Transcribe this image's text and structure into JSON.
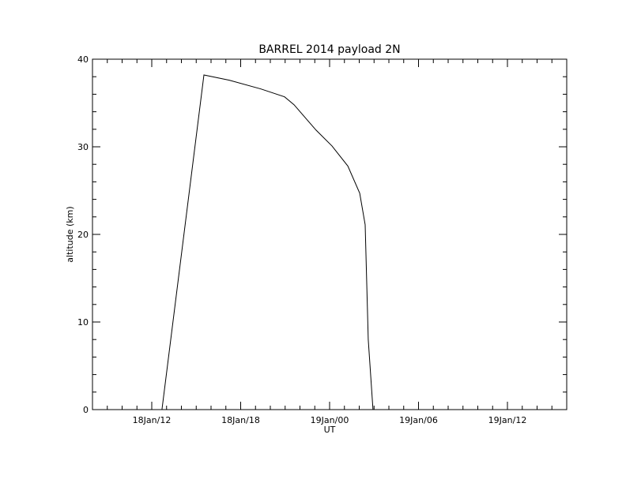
{
  "chart_data": {
    "type": "line",
    "title": "BARREL 2014 payload 2N",
    "x_label": "UT",
    "y_label": "altitude (km)",
    "series": [
      {
        "name": "altitude",
        "color": "#000000",
        "x": [
          12.69,
          15.52,
          17.23,
          19.36,
          20.96,
          21.6,
          23.09,
          24.16,
          25.23,
          26.03,
          26.4,
          26.61,
          26.93
        ],
        "values": [
          0,
          38.2,
          37.6,
          36.6,
          35.7,
          34.8,
          31.9,
          30.1,
          27.8,
          24.7,
          21.1,
          8.0,
          0
        ]
      }
    ],
    "xlim": [
      8,
      40
    ],
    "xticks": [
      {
        "value": 12,
        "label": "18Jan/12"
      },
      {
        "value": 18,
        "label": "18Jan/18"
      },
      {
        "value": 24,
        "label": "19Jan/00"
      },
      {
        "value": 30,
        "label": "19Jan/06"
      },
      {
        "value": 36,
        "label": "19Jan/12"
      }
    ],
    "ylim": [
      0,
      40
    ],
    "yticks": [
      0,
      10,
      20,
      30,
      40
    ]
  }
}
